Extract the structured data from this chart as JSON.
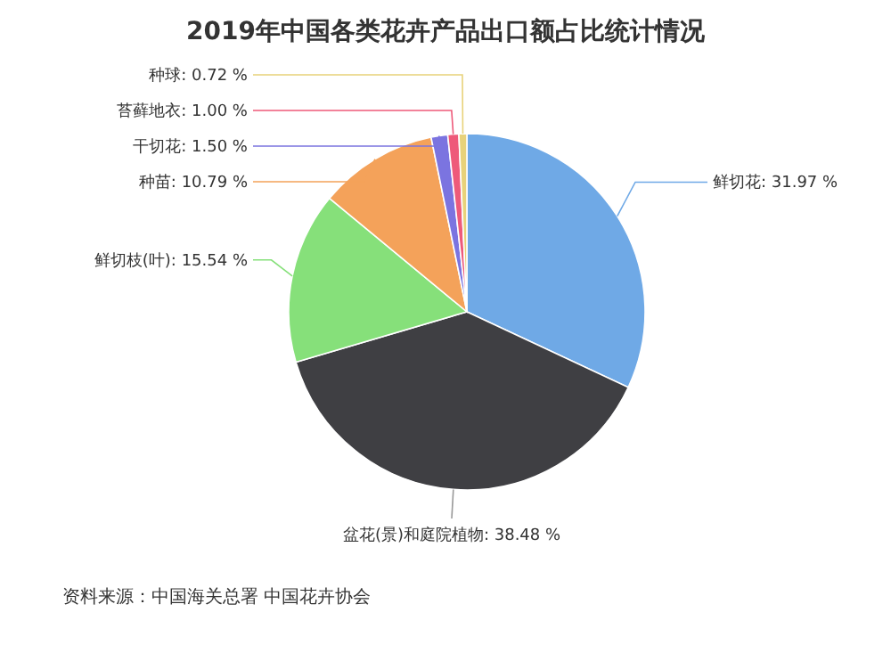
{
  "chart_data": {
    "type": "pie",
    "title": "2019年中国各类花卉产品出口额占比统计情况",
    "categories": [
      "鲜切花",
      "盆花(景)和庭院植物",
      "鲜切枝(叶)",
      "种苗",
      "干切花",
      "苔藓地衣",
      "种球"
    ],
    "values": [
      31.97,
      38.48,
      15.54,
      10.79,
      1.5,
      1.0,
      0.72
    ],
    "colors": [
      "#6fa9e6",
      "#3f3f43",
      "#86e07a",
      "#f4a25a",
      "#7b74e0",
      "#ee5a7a",
      "#e8d27a"
    ],
    "value_labels": [
      ": 31.97 %",
      ": 38.48 %",
      ": 15.54 %",
      ": 10.79 %",
      ": 1.50 %",
      ": 1.00 %",
      ": 0.72 %"
    ],
    "legend": false,
    "annotations": [
      "资料来源：中国海关总署 中国花卉协会"
    ]
  }
}
